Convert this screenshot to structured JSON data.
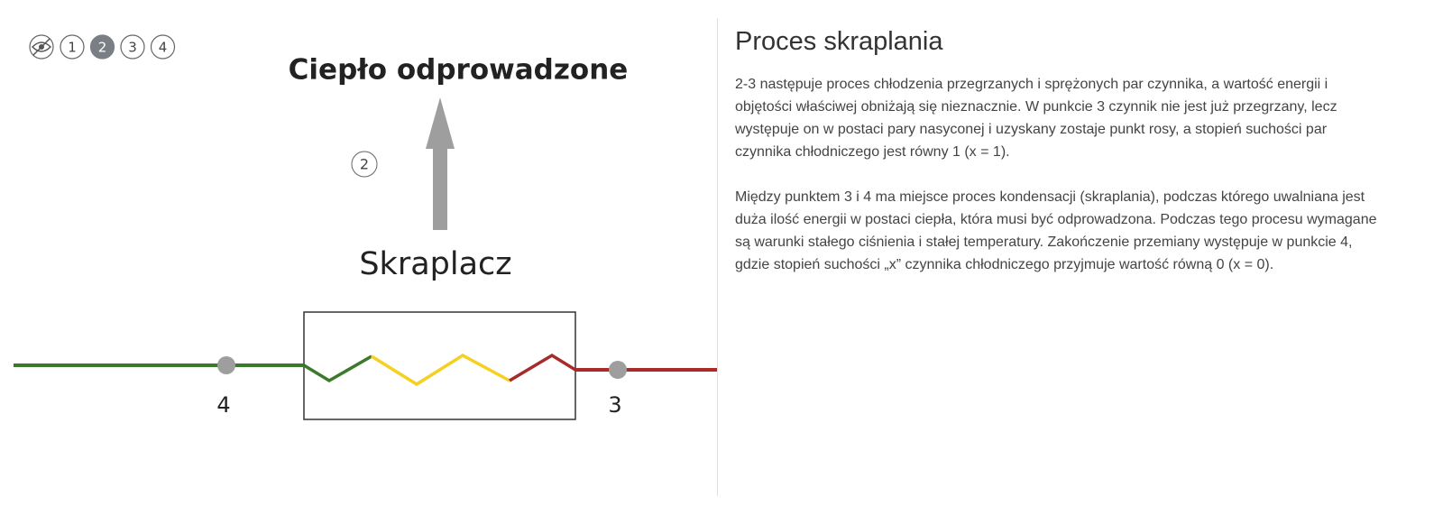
{
  "nav": {
    "steps": [
      "1",
      "2",
      "3",
      "4"
    ],
    "active": 1
  },
  "diagram": {
    "heat_label": "Ciepło odprowadzone",
    "step_marker": "2",
    "component_label": "Skraplacz",
    "point_left": "4",
    "point_right": "3"
  },
  "panel": {
    "title": "Proces skraplania",
    "paragraphs": [
      "2-3 następuje proces chłodzenia przegrzanych i sprężonych par czynnika, a wartość energii i objętości właściwej obniżają się nieznacznie. W punkcie 3 czynnik nie jest już przegrzany, lecz występuje on w postaci pary nasyconej i uzyskany zostaje punkt rosy, a stopień suchości par czynnika chłodniczego jest równy 1 (x = 1).",
      "Między punktem 3 i 4 ma miejsce proces kondensacji (skraplania), podczas którego uwalniana jest duża ilość energii w postaci ciepła, która musi być odprowadzona. Podczas tego procesu wymagane są warunki stałego ciśnienia i stałej temperatury. Zakończenie przemiany występuje w punkcie 4, gdzie stopień suchości „x” czynnika chłodniczego przyjmuje wartość równą 0 (x = 0)."
    ]
  }
}
